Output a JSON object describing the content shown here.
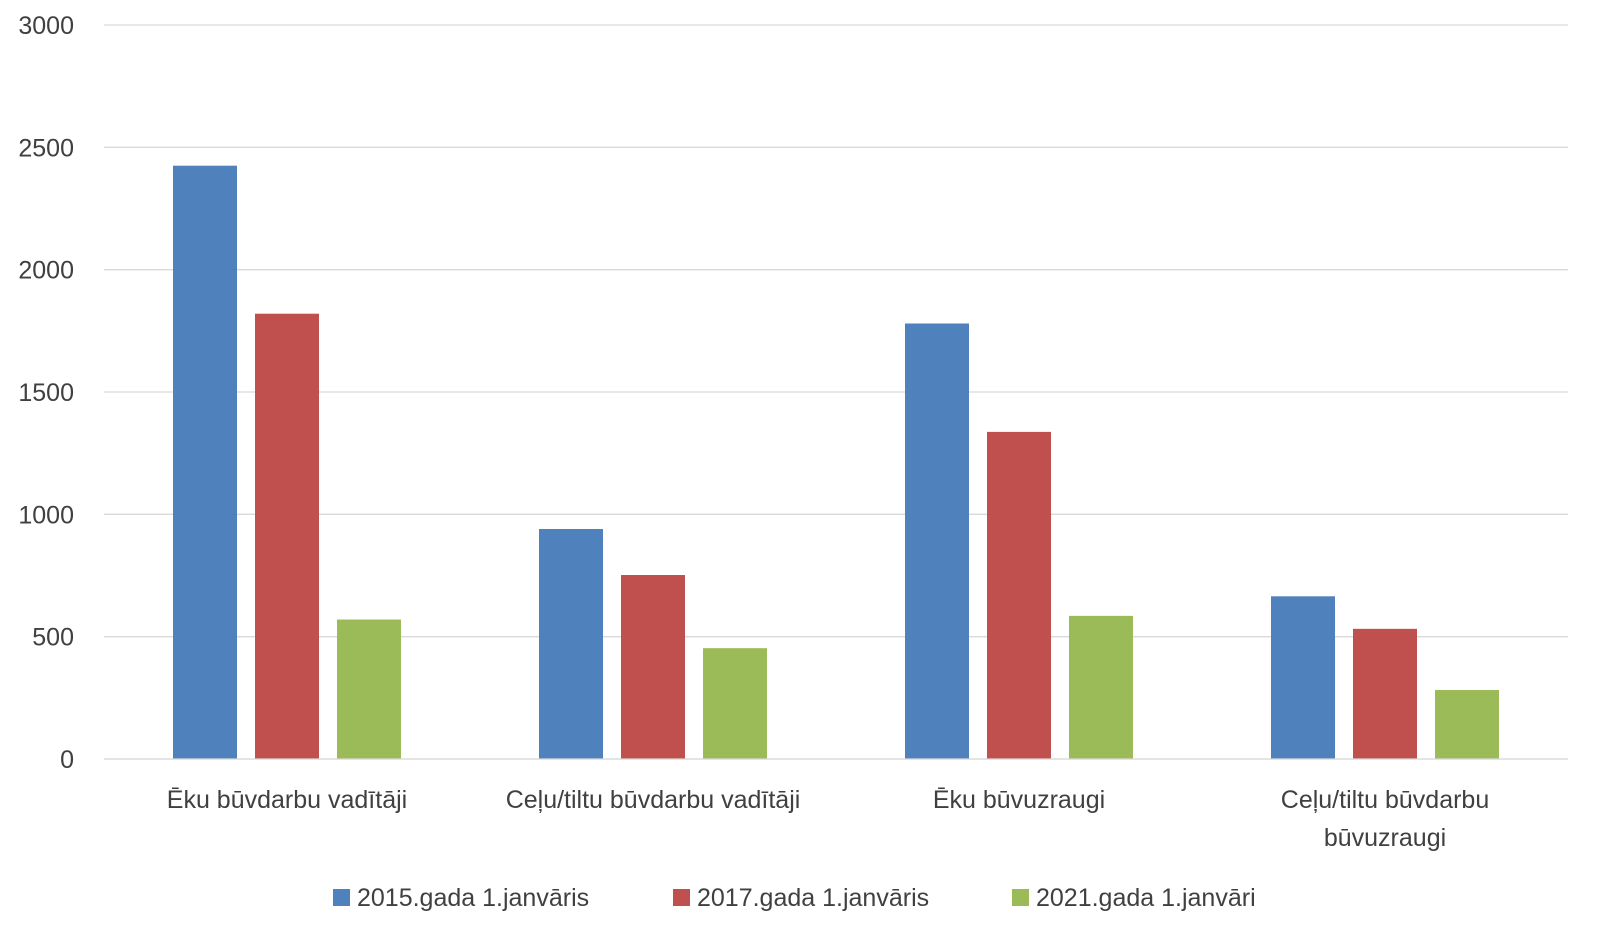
{
  "chart_data": {
    "type": "bar",
    "categories": [
      [
        "Ēku būvdarbu vadītāji"
      ],
      [
        "Ceļu/tiltu būvdarbu vadītāji"
      ],
      [
        "Ēku būvuzraugi"
      ],
      [
        "Ceļu/tiltu būvdarbu",
        "būvuzraugi"
      ]
    ],
    "series": [
      {
        "name": "2015.gada 1.janvāris",
        "color": "#4f81bd",
        "values": [
          2425,
          940,
          1780,
          665
        ]
      },
      {
        "name": "2017.gada 1.janvāris",
        "color": "#c0504d",
        "values": [
          1820,
          752,
          1337,
          532
        ]
      },
      {
        "name": "2021.gada 1.janvāri",
        "color": "#9bbb59",
        "values": [
          570,
          453,
          585,
          282
        ]
      }
    ],
    "yticks": [
      "0",
      "500",
      "1000",
      "1500",
      "2000",
      "2500",
      "3000"
    ],
    "ylim": [
      0,
      3000
    ],
    "grid": true,
    "legend": "bottom",
    "gridColor": "#d9d9d9"
  }
}
